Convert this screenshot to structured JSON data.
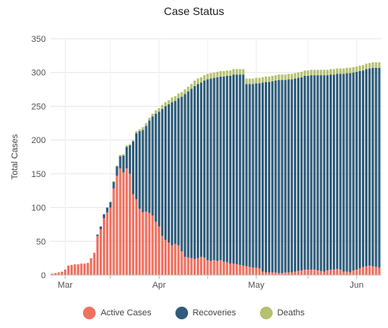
{
  "chart_data": {
    "type": "bar",
    "stacked": true,
    "title": "Case Status",
    "xlabel": "",
    "ylabel": "Total Cases",
    "ylim": [
      0,
      350
    ],
    "yticks": [
      0,
      50,
      100,
      150,
      200,
      250,
      300,
      350
    ],
    "x_tick_labels": [
      {
        "label": "Mar",
        "day": 4
      },
      {
        "label": "Apr",
        "day": 33
      },
      {
        "label": "May",
        "day": 63
      },
      {
        "label": "Jun",
        "day": 94
      }
    ],
    "legend_position": "bottom",
    "grid": true,
    "colors": {
      "active": "#ef7160",
      "recoveries": "#2e5c7a",
      "deaths": "#b5c16e"
    },
    "series": [
      {
        "name": "Active Cases",
        "values": [
          2,
          3,
          4,
          5,
          8,
          14,
          15,
          16,
          16,
          17,
          17,
          18,
          25,
          33,
          58,
          68,
          84,
          93,
          100,
          128,
          147,
          158,
          152,
          158,
          150,
          120,
          112,
          98,
          93,
          94,
          92,
          88,
          79,
          72,
          58,
          52,
          48,
          44,
          46,
          44,
          35,
          27,
          26,
          25,
          24,
          25,
          27,
          26,
          22,
          21,
          22,
          21,
          22,
          20,
          19,
          17,
          17,
          16,
          15,
          14,
          13,
          12,
          11,
          11,
          10,
          5,
          4,
          4,
          4,
          4,
          3,
          3,
          4,
          4,
          4,
          5,
          6,
          7,
          8,
          8,
          8,
          8,
          7,
          6,
          5,
          7,
          8,
          8,
          9,
          8,
          5,
          5,
          4,
          7,
          8,
          10,
          12,
          13,
          14,
          13,
          12,
          11
        ]
      },
      {
        "name": "Recoveries",
        "values": [
          0,
          0,
          0,
          0,
          0,
          0,
          0,
          0,
          0,
          0,
          0,
          0,
          0,
          0,
          2,
          4,
          6,
          7,
          8,
          10,
          14,
          18,
          25,
          32,
          42,
          78,
          98,
          115,
          122,
          127,
          137,
          147,
          160,
          170,
          188,
          198,
          205,
          212,
          212,
          218,
          229,
          241,
          246,
          251,
          256,
          258,
          258,
          262,
          268,
          270,
          270,
          272,
          272,
          274,
          276,
          278,
          280,
          281,
          282,
          283,
          270,
          271,
          272,
          273,
          274,
          280,
          282,
          282,
          283,
          284,
          286,
          286,
          285,
          286,
          286,
          286,
          286,
          286,
          287,
          287,
          288,
          288,
          289,
          290,
          291,
          289,
          289,
          289,
          289,
          290,
          293,
          294,
          295,
          293,
          293,
          292,
          291,
          292,
          292,
          294,
          295,
          296
        ]
      },
      {
        "name": "Deaths",
        "values": [
          0,
          0,
          0,
          0,
          0,
          0,
          0,
          0,
          0,
          0,
          0,
          0,
          0,
          0,
          0,
          0,
          0,
          0,
          1,
          1,
          1,
          2,
          2,
          2,
          2,
          2,
          3,
          3,
          4,
          4,
          4,
          4,
          5,
          5,
          6,
          6,
          6,
          7,
          7,
          7,
          7,
          7,
          7,
          7,
          8,
          8,
          8,
          8,
          8,
          8,
          8,
          8,
          8,
          8,
          8,
          8,
          8,
          8,
          8,
          8,
          8,
          8,
          8,
          8,
          8,
          8,
          8,
          8,
          8,
          8,
          8,
          8,
          8,
          8,
          8,
          8,
          8,
          8,
          8,
          8,
          8,
          8,
          8,
          8,
          8,
          8,
          8,
          8,
          8,
          8,
          8,
          8,
          8,
          8,
          8,
          8,
          8,
          8,
          8,
          8,
          8,
          8
        ]
      }
    ]
  }
}
